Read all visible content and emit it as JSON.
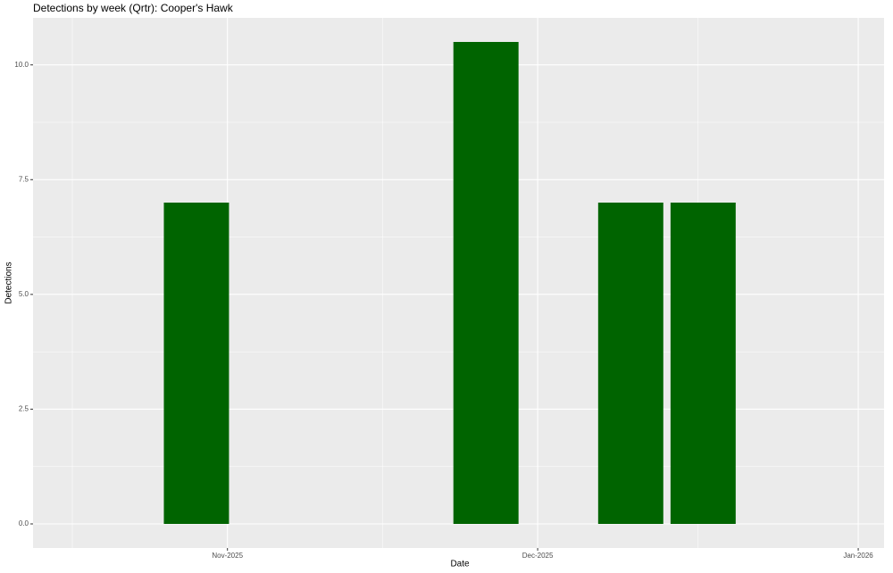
{
  "chart_data": {
    "type": "bar",
    "title": "Detections by week (Qrtr): Cooper's Hawk",
    "x_label": "Date",
    "y_label": "Detections",
    "x": [
      -3,
      25,
      39,
      46
    ],
    "values": [
      7,
      10.5,
      7,
      7
    ],
    "color": "#006400",
    "xlim": [
      -18.8,
      63.5
    ],
    "xticks": [
      {
        "value": 0,
        "label": "Nov-2025"
      },
      {
        "value": 30,
        "label": "Dec-2025"
      },
      {
        "value": 61,
        "label": "Jan-2026"
      }
    ],
    "ylim": [
      -0.525,
      11.025
    ],
    "yticks": [
      {
        "value": 0,
        "label": "0.0"
      },
      {
        "value": 2.5,
        "label": "2.5"
      },
      {
        "value": 5,
        "label": "5.0"
      },
      {
        "value": 7.5,
        "label": "7.5"
      },
      {
        "value": 10,
        "label": "10.0"
      }
    ],
    "grid": true
  }
}
